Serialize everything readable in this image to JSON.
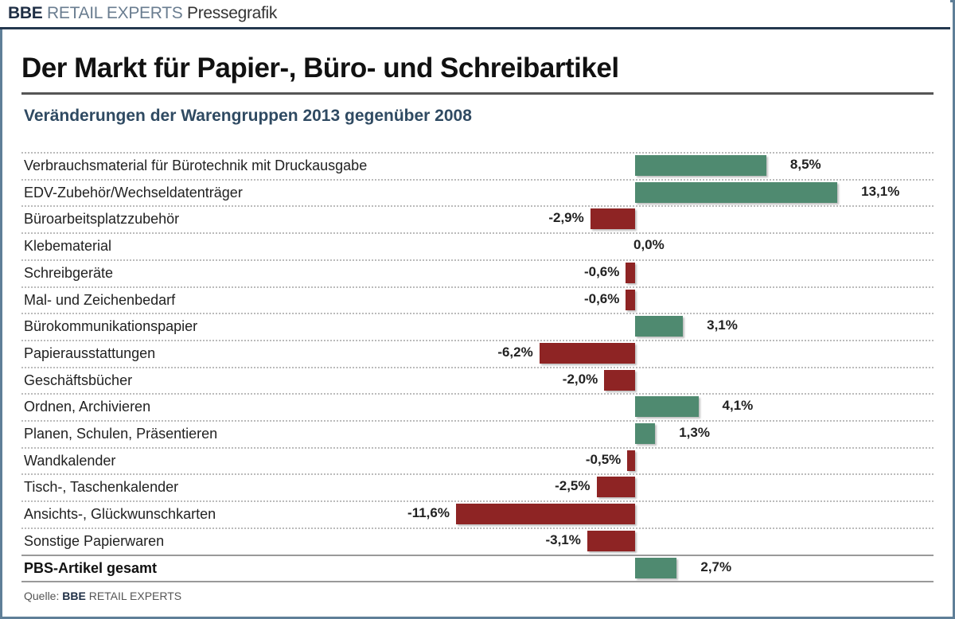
{
  "header": {
    "brand_bold": "BBE",
    "brand_rest": "RETAIL EXPERTS",
    "section": "Pressegrafik"
  },
  "chart_data": {
    "type": "bar",
    "orientation": "horizontal",
    "title": "Der Markt für Papier-, Büro- und Schreibartikel",
    "subtitle": "Veränderungen der Warengruppen 2013 gegenüber 2008",
    "categories": [
      "Verbrauchsmaterial für Bürotechnik mit Druckausgabe",
      "EDV-Zubehör/Wechseldatenträger",
      "Büroarbeitsplatzzubehör",
      "Klebematerial",
      "Schreibgeräte",
      "Mal- und Zeichenbedarf",
      "Bürokommunikationspapier",
      "Papierausstattungen",
      "Geschäftsbücher",
      "Ordnen, Archivieren",
      "Planen, Schulen, Präsentieren",
      "Wandkalender",
      "Tisch-, Taschenkalender",
      "Ansichts-, Glückwunschkarten",
      "Sonstige Papierwaren",
      "PBS-Artikel gesamt"
    ],
    "values": [
      8.5,
      13.1,
      -2.9,
      0.0,
      -0.6,
      -0.6,
      3.1,
      -6.2,
      -2.0,
      4.1,
      1.3,
      -0.5,
      -2.5,
      -11.6,
      -3.1,
      2.7
    ],
    "labels": [
      "8,5%",
      "13,1%",
      "-2,9%",
      "0,0%",
      "-0,6%",
      "-0,6%",
      "3,1%",
      "-6,2%",
      "-2,0%",
      "4,1%",
      "1,3%",
      "-0,5%",
      "-2,5%",
      "-11,6%",
      "-3,1%",
      "2,7%"
    ],
    "unit": "%",
    "colors": {
      "positive": "#4f8a70",
      "negative": "#8e2424"
    },
    "grid": "dotted horizontal row separators"
  },
  "footer": {
    "source_prefix": "Quelle:",
    "source_bold": "BBE",
    "source_rest": "RETAIL EXPERTS"
  }
}
